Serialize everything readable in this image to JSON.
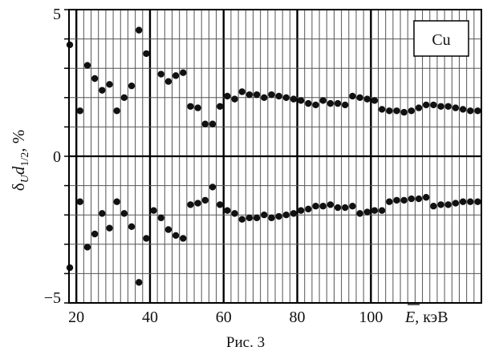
{
  "caption": "Рис. 3",
  "chart_data": {
    "type": "scatter",
    "title": "",
    "legend_box": "Cu",
    "legend_placement": "top-right",
    "ylabel_parts": {
      "delta": "δ",
      "delta_sub": "U",
      "d": "d",
      "d_sub": "1/2",
      "unit": ", %"
    },
    "xlabel_parts": {
      "symbol": "E",
      "unit": ", кэВ"
    },
    "xlim": [
      18,
      130
    ],
    "ylim": [
      -5,
      5
    ],
    "grid": true,
    "x_major_ticks": [
      20,
      40,
      60,
      80,
      100
    ],
    "x_tick_labels": [
      "20",
      "40",
      "60",
      "80",
      "100"
    ],
    "y_tick_labels": [
      {
        "value": 5,
        "label": "5"
      },
      {
        "value": 0,
        "label": "0"
      },
      {
        "value": -5,
        "label": "−5"
      }
    ],
    "upper_series": {
      "x": [
        17.5,
        21,
        23,
        25,
        27,
        29,
        31,
        33,
        35,
        37,
        39,
        43,
        45,
        47,
        49,
        51,
        53,
        55,
        57,
        59,
        61,
        63,
        65,
        67,
        69,
        71,
        73,
        75,
        77,
        79,
        81,
        83,
        85,
        87,
        89,
        91,
        93,
        95,
        97,
        99,
        101,
        103,
        105,
        107,
        109,
        111,
        113,
        115,
        117,
        119,
        121,
        123,
        125,
        127,
        129
      ],
      "y": [
        3.8,
        1.55,
        3.1,
        2.65,
        2.25,
        2.45,
        1.55,
        2.0,
        2.4,
        4.3,
        3.5,
        2.8,
        2.55,
        2.75,
        2.85,
        1.7,
        1.65,
        1.1,
        1.1,
        1.7,
        2.05,
        1.95,
        2.2,
        2.1,
        2.1,
        2.0,
        2.1,
        2.05,
        2.0,
        1.95,
        1.9,
        1.8,
        1.75,
        1.9,
        1.8,
        1.8,
        1.75,
        2.05,
        2.0,
        1.95,
        1.9,
        1.6,
        1.55,
        1.55,
        1.5,
        1.55,
        1.65,
        1.75,
        1.75,
        1.7,
        1.7,
        1.65,
        1.6,
        1.55,
        1.55
      ]
    },
    "lower_series": {
      "x": [
        17.5,
        21,
        23,
        25,
        27,
        29,
        31,
        33,
        35,
        37,
        39,
        41,
        43,
        45,
        47,
        49,
        51,
        53,
        55,
        57,
        59,
        61,
        63,
        65,
        67,
        69,
        71,
        73,
        75,
        77,
        79,
        81,
        83,
        85,
        87,
        89,
        91,
        93,
        95,
        97,
        99,
        101,
        103,
        105,
        107,
        109,
        111,
        113,
        115,
        117,
        119,
        121,
        123,
        125,
        127,
        129
      ],
      "y": [
        -3.8,
        -1.55,
        -3.1,
        -2.65,
        -1.95,
        -2.45,
        -1.55,
        -1.95,
        -2.4,
        -4.3,
        -2.8,
        -1.85,
        -2.1,
        -2.5,
        -2.7,
        -2.8,
        -1.65,
        -1.6,
        -1.5,
        -1.05,
        -1.65,
        -1.85,
        -1.95,
        -2.15,
        -2.1,
        -2.1,
        -2.0,
        -2.1,
        -2.05,
        -2.0,
        -1.95,
        -1.85,
        -1.8,
        -1.7,
        -1.7,
        -1.65,
        -1.75,
        -1.75,
        -1.7,
        -1.95,
        -1.9,
        -1.85,
        -1.85,
        -1.55,
        -1.5,
        -1.5,
        -1.45,
        -1.45,
        -1.4,
        -1.7,
        -1.65,
        -1.65,
        -1.6,
        -1.55,
        -1.55,
        -1.55
      ]
    },
    "colors": {
      "points": "#111111",
      "grid": "#555555",
      "major": "#000000",
      "background": "#ffffff"
    }
  }
}
